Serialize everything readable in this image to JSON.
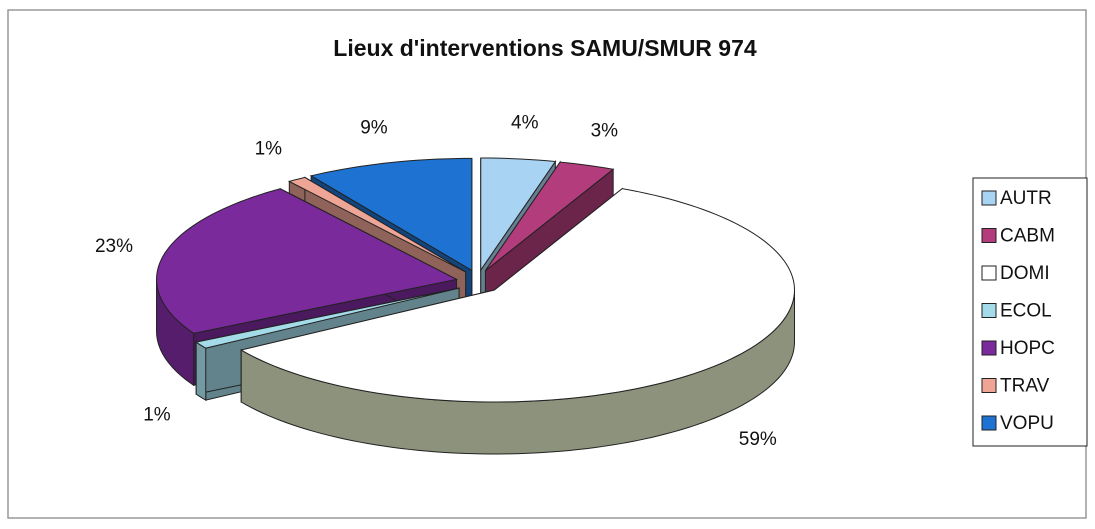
{
  "chart_data": {
    "type": "pie",
    "title": "Lieux d'interventions SAMU/SMUR 974",
    "categories": [
      "AUTR",
      "CABM",
      "DOMI",
      "ECOL",
      "HOPC",
      "TRAV",
      "VOPU"
    ],
    "values": [
      4,
      3,
      59,
      1,
      23,
      1,
      9
    ],
    "value_labels": [
      "4%",
      "3%",
      "59%",
      "1%",
      "23%",
      "1%",
      "9%"
    ],
    "colors": [
      "#a9d3f2",
      "#b33c7c",
      "#ffffff",
      "#a4dbe8",
      "#7b2a9c",
      "#eea596",
      "#1e73d2"
    ],
    "legend": "right"
  }
}
